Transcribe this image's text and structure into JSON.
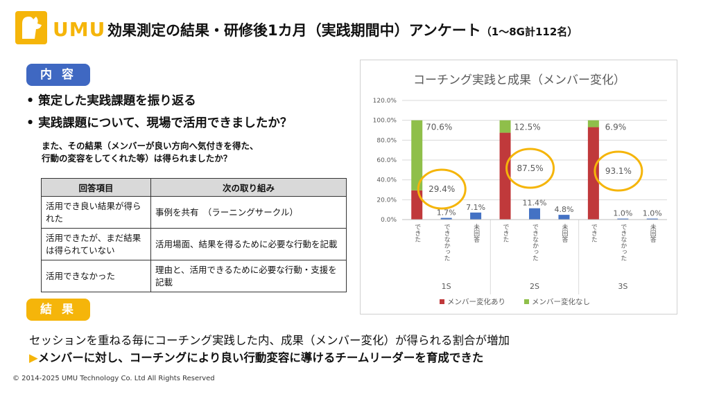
{
  "brand": {
    "logo_text": "UMU",
    "accent": "#f5b50a",
    "blue": "#3f68c2"
  },
  "title": {
    "main": "効果測定の結果・研修後1カ月（実践期間中）アンケート",
    "sub": "（1～8G計112名）"
  },
  "content_badge": "内 容",
  "bullets": [
    "策定した実践課題を振り返る",
    "実践課題について、現場で活用できましたか？"
  ],
  "note": [
    "また、その結果（メンバーが良い方向へ気付きを得た、",
    "行動の変容をしてくれた等）は得られましたか？"
  ],
  "table": {
    "headers": [
      "回答項目",
      "次の取り組み"
    ],
    "rows": [
      {
        "item": "活用でき良い結果が得られた",
        "action": "事例を共有　（ラーニングサークル）"
      },
      {
        "item": "活用できたが、まだ結果は得られていない",
        "action": "活用場面、結果を得るために必要な行動を記載"
      },
      {
        "item": "活用できなかった",
        "action": "理由と、活用できるために必要な行動・支援を記載"
      }
    ]
  },
  "result_badge": "結 果",
  "result_text": "セッションを重ねる毎にコーチング実践した内、成果（メンバー変化）が得られる割合が増加",
  "conclusion_arrow": "▶",
  "conclusion_text": "メンバーに対し、コーチングにより良い行動変容に導けるチームリーダーを育成できた",
  "footer": "© 2014-2025 UMU Technology Co. Ltd All Rights Reserved",
  "chart_data": {
    "type": "bar",
    "title": "コーチング実践と成果（メンバー変化）",
    "groups": [
      "1S",
      "2S",
      "3S"
    ],
    "subcategories": [
      "できた",
      "できなかった",
      "未回答"
    ],
    "yticks": [
      "0.0%",
      "20.0%",
      "40.0%",
      "60.0%",
      "80.0%",
      "100.0%",
      "120.0%"
    ],
    "ylim": [
      0,
      120
    ],
    "stacked_series": [
      {
        "name": "メンバー変化あり",
        "color": "#c0393b",
        "values": [
          29.4,
          87.5,
          93.1
        ]
      },
      {
        "name": "メンバー変化なし",
        "color": "#8fbf4a",
        "values": [
          70.6,
          12.5,
          6.9
        ]
      }
    ],
    "other_bars": {
      "color": "#4472c4",
      "cannot": [
        1.7,
        11.4,
        1.0
      ],
      "no_answer": [
        7.1,
        4.8,
        1.0
      ]
    },
    "labels": {
      "changed": [
        "29.4%",
        "87.5%",
        "93.1%"
      ],
      "unchanged": [
        "70.6%",
        "12.5%",
        "6.9%"
      ],
      "cannot": [
        "1.7%",
        "11.4%",
        "1.0%"
      ],
      "no_answer": [
        "7.1%",
        "4.8%",
        "1.0%"
      ]
    },
    "highlight_color": "#f5b50a"
  }
}
